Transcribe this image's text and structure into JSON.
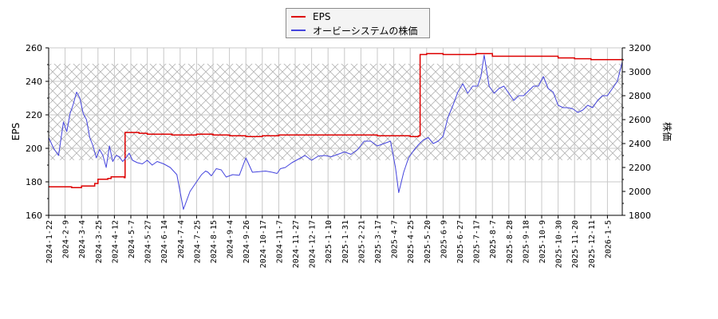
{
  "chart_data": {
    "type": "line",
    "title": "",
    "legend": {
      "position": "top-center",
      "entries": [
        {
          "label": "EPS",
          "color": "#dd0000"
        },
        {
          "label": "オービーシステムの株価",
          "color": "#4444dd"
        }
      ]
    },
    "xlabel": "",
    "ylabel": "EPS",
    "y2label": "株価",
    "ylim": [
      160,
      260
    ],
    "y2lim": [
      1800,
      3200
    ],
    "yticks": [
      160,
      180,
      200,
      220,
      240,
      260
    ],
    "y2ticks": [
      1800,
      2000,
      2200,
      2400,
      2600,
      2800,
      3000,
      3200
    ],
    "grid": true,
    "hatched_band": {
      "y_from": 193,
      "y_to": 250.5,
      "axis": "EPS"
    },
    "x_tick_labels": [
      "2024-1-22",
      "2024-2-9",
      "2024-3-4",
      "2024-3-25",
      "2024-4-12",
      "2024-5-7",
      "2024-5-27",
      "2024-6-14",
      "2024-7-4",
      "2024-7-25",
      "2024-8-15",
      "2024-9-4",
      "2024-9-26",
      "2024-10-17",
      "2024-11-7",
      "2024-11-27",
      "2024-12-17",
      "2025-1-10",
      "2025-1-31",
      "2025-2-21",
      "2025-3-17",
      "2025-4-7",
      "2025-4-25",
      "2025-5-20",
      "2025-6-9",
      "2025-6-27",
      "2025-7-17",
      "2025-8-7",
      "2025-8-28",
      "2025-9-18",
      "2025-10-9",
      "2025-10-30",
      "2025-11-20",
      "2025-12-11",
      "2026-1-5"
    ],
    "series": [
      {
        "name": "EPS",
        "color": "#dd0000",
        "axis": "left",
        "x_index": [
          0,
          1.2,
          1.4,
          2.0,
          2.6,
          2.8,
          3.0,
          3.6,
          3.8,
          4.3,
          4.6,
          4.65,
          5.0,
          5.5,
          6.0,
          7.0,
          7.5,
          8.0,
          8.5,
          9.0,
          10.0,
          11.0,
          11.5,
          12.0,
          13.0,
          14.0,
          15.0,
          16.0,
          17.0,
          18.0,
          19.0,
          20.0,
          21.0,
          21.5,
          22.0,
          22.5,
          22.6,
          23.0,
          24.0,
          25.0,
          26.0,
          26.6,
          27.0,
          28.0,
          29.0,
          30.0,
          31.0,
          32.0,
          33.0,
          34.0,
          34.9
        ],
        "values": [
          177,
          177,
          176.5,
          177.5,
          177.5,
          179,
          181.5,
          182,
          183,
          183,
          182.5,
          209.5,
          209.5,
          209,
          208.5,
          208.5,
          208,
          208,
          208,
          208.5,
          208,
          207.5,
          207.5,
          207,
          207.5,
          208,
          208,
          208,
          208,
          208,
          208,
          207.5,
          207.5,
          207.5,
          207,
          207.5,
          256,
          256.5,
          256,
          256,
          256.5,
          256.5,
          255,
          255,
          255,
          255,
          254,
          253.5,
          253,
          253,
          253.5
        ]
      },
      {
        "name": "オービーシステムの株価",
        "color": "#4444dd",
        "axis": "right",
        "x_index": [
          0,
          0.3,
          0.6,
          0.9,
          1.1,
          1.3,
          1.5,
          1.7,
          1.9,
          2.1,
          2.3,
          2.5,
          2.7,
          2.9,
          3.1,
          3.3,
          3.5,
          3.7,
          3.9,
          4.1,
          4.3,
          4.5,
          4.7,
          4.9,
          5.1,
          5.4,
          5.7,
          6.0,
          6.3,
          6.6,
          7.0,
          7.4,
          7.8,
          8.2,
          8.6,
          9.0,
          9.3,
          9.55,
          9.7,
          9.9,
          10.2,
          10.5,
          10.8,
          11.2,
          11.6,
          12.0,
          12.4,
          12.8,
          13.2,
          13.6,
          13.9,
          14.1,
          14.4,
          14.8,
          15.2,
          15.6,
          16.0,
          16.4,
          16.8,
          17.2,
          17.6,
          18.0,
          18.4,
          18.8,
          19.2,
          19.6,
          20.0,
          20.4,
          20.8,
          21.1,
          21.3,
          21.6,
          21.9,
          22.2,
          22.5,
          22.8,
          23.1,
          23.4,
          23.7,
          24.0,
          24.3,
          24.6,
          24.9,
          25.2,
          25.5,
          25.8,
          26.1,
          26.3,
          26.5,
          26.8,
          27.1,
          27.4,
          27.7,
          28.0,
          28.3,
          28.6,
          28.9,
          29.2,
          29.5,
          29.8,
          30.1,
          30.4,
          30.7,
          31.0,
          31.3,
          31.6,
          31.9,
          32.2,
          32.5,
          32.8,
          33.1,
          33.4,
          33.7,
          34.0,
          34.3,
          34.6,
          34.9
        ],
        "values": [
          2450,
          2360,
          2300,
          2580,
          2500,
          2650,
          2730,
          2830,
          2780,
          2650,
          2600,
          2450,
          2380,
          2280,
          2350,
          2300,
          2200,
          2380,
          2250,
          2300,
          2290,
          2250,
          2280,
          2320,
          2260,
          2240,
          2230,
          2260,
          2220,
          2250,
          2230,
          2200,
          2140,
          1850,
          2000,
          2080,
          2140,
          2170,
          2160,
          2130,
          2190,
          2180,
          2120,
          2140,
          2135,
          2280,
          2160,
          2165,
          2170,
          2160,
          2150,
          2190,
          2200,
          2240,
          2270,
          2300,
          2260,
          2295,
          2300,
          2290,
          2310,
          2330,
          2310,
          2350,
          2420,
          2420,
          2380,
          2400,
          2420,
          2200,
          1990,
          2160,
          2280,
          2340,
          2390,
          2430,
          2450,
          2400,
          2420,
          2460,
          2620,
          2720,
          2830,
          2900,
          2820,
          2880,
          2880,
          2960,
          3140,
          2880,
          2820,
          2860,
          2880,
          2820,
          2760,
          2800,
          2800,
          2840,
          2880,
          2880,
          2960,
          2860,
          2830,
          2720,
          2700,
          2700,
          2690,
          2660,
          2680,
          2720,
          2700,
          2760,
          2800,
          2800,
          2860,
          2920,
          3080
        ]
      }
    ]
  }
}
